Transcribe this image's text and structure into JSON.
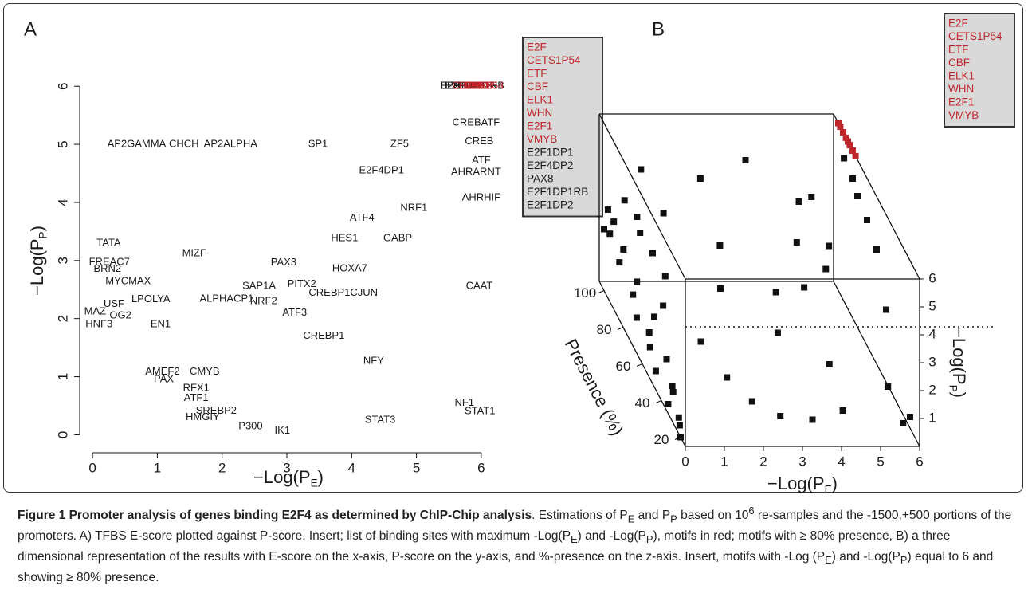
{
  "chart_data": [
    {
      "type": "text-scatter",
      "panel_label": "A",
      "xlabel": [
        "−Log(P",
        "E",
        ")"
      ],
      "ylabel": [
        "−Log(P",
        "P",
        ")"
      ],
      "xlim": [
        -0.1,
        6.1
      ],
      "ylim": [
        -0.2,
        6.25
      ],
      "xticks": [
        0,
        1,
        2,
        3,
        4,
        5,
        6
      ],
      "yticks": [
        0,
        1,
        2,
        3,
        4,
        5,
        6
      ],
      "series": [
        {
          "color": "#1a1a1a",
          "labels": [
            "AP2GAMMA",
            "CHCH",
            "AP2ALPHA",
            "SP1",
            "ZF5",
            "E2F4DP1",
            "CREBATF",
            "CREB",
            "ATF",
            "AHRARNT",
            "AHRHIF",
            "NRF1",
            "ATF4",
            "HES1",
            "GABP",
            "TATA",
            "MIZF",
            "FREAC7",
            "BRN2",
            "PAX3",
            "HOXA7",
            "MYCMAX",
            "SAP1A",
            "PITX2",
            "CREBP1CJUN",
            "CAAT",
            "LPOLYA",
            "USF",
            "ALPHACP1",
            "NRF2",
            "ATF3",
            "MAZ",
            "OG2",
            "EN1",
            "CREBP1",
            "NFY",
            "CMYB",
            "AMEF2",
            "PAX",
            "HNF3",
            "RFX1",
            "ATF1",
            "SREBP2",
            "HMGIY",
            "P300",
            "IK1",
            "STAT3",
            "NF1",
            "STAT1",
            "E2F1DP1",
            "E2F4DP2",
            "PAX8",
            "E2F1DP1RB",
            "E2F1DP2"
          ],
          "x": [
            0.68,
            1.41,
            2.13,
            3.48,
            4.74,
            4.46,
            5.92,
            5.97,
            6.0,
            5.92,
            6.0,
            4.96,
            4.16,
            3.89,
            4.71,
            0.25,
            1.57,
            0.26,
            0.23,
            2.95,
            3.97,
            0.55,
            2.57,
            3.23,
            3.87,
            5.97,
            0.9,
            0.33,
            2.07,
            2.64,
            3.12,
            0.04,
            0.43,
            1.05,
            3.57,
            4.34,
            1.73,
            1.08,
            1.1,
            0.1,
            1.6,
            1.6,
            1.91,
            1.7,
            2.44,
            2.93,
            4.44,
            5.74,
            5.98,
            5.72,
            5.78,
            5.85,
            5.9,
            5.82
          ],
          "y": [
            5.0,
            5.0,
            5.0,
            5.0,
            5.0,
            4.55,
            5.37,
            5.05,
            4.72,
            4.52,
            4.08,
            3.9,
            3.73,
            3.38,
            3.38,
            3.3,
            3.12,
            2.97,
            2.85,
            2.96,
            2.86,
            2.64,
            2.56,
            2.59,
            2.44,
            2.56,
            2.33,
            2.25,
            2.34,
            2.3,
            2.1,
            2.12,
            2.05,
            1.9,
            1.7,
            1.27,
            1.08,
            1.08,
            0.95,
            1.9,
            0.8,
            0.63,
            0.41,
            0.3,
            0.14,
            0.07,
            0.25,
            0.55,
            0.4,
            6.0,
            6.0,
            6.0,
            6.0,
            6.0
          ]
        },
        {
          "color": "#c0272d",
          "labels": [
            "E2F",
            "CETS1P54",
            "ETF",
            "CBF",
            "ELK1",
            "WHN",
            "E2F1",
            "VMYB"
          ],
          "x": [
            5.8,
            5.95,
            5.9,
            5.88,
            5.93,
            6.0,
            5.85,
            5.97
          ],
          "y": [
            6.0,
            6.0,
            6.0,
            6.0,
            6.0,
            6.0,
            6.0,
            6.0
          ]
        }
      ],
      "insert": {
        "items": [
          "E2F",
          "CETS1P54",
          "ETF",
          "CBF",
          "ELK1",
          "WHN",
          "E2F1",
          "VMYB",
          "E2F1DP1",
          "E2F4DP2",
          "PAX8",
          "E2F1DP1RB",
          "E2F1DP2"
        ],
        "colors": [
          "#c0272d",
          "#c0272d",
          "#c0272d",
          "#c0272d",
          "#c0272d",
          "#c0272d",
          "#c0272d",
          "#c0272d",
          "#1a1a1a",
          "#1a1a1a",
          "#1a1a1a",
          "#1a1a1a",
          "#1a1a1a"
        ]
      }
    },
    {
      "type": "scatter3d",
      "panel_label": "B",
      "xlabel": [
        "−Log(P",
        "E",
        ")"
      ],
      "ylabel": [
        "−Log(P",
        "P",
        ")"
      ],
      "zlabel": "Presence (%)",
      "xlim": [
        0,
        6
      ],
      "ylim": [
        0,
        6
      ],
      "zlim": [
        15,
        105
      ],
      "xticks": [
        0,
        1,
        2,
        3,
        4,
        5,
        6
      ],
      "yticks": [
        1,
        2,
        3,
        4,
        5,
        6
      ],
      "zticks": [
        20,
        40,
        60,
        80,
        100
      ],
      "series": [
        {
          "color": "#111111",
          "x": [
            0,
            0.1,
            0.2,
            0.05,
            0.3,
            0.4,
            0.1,
            0.5,
            0.2,
            0.3,
            0.1,
            0.6,
            0.2,
            0.4,
            0.1,
            0.3,
            0.05,
            0.2,
            0,
            0.1,
            0.5,
            0.8,
            1.0,
            1.2,
            0.9,
            1.5,
            1.8,
            2.2,
            2.8,
            3.5,
            4.4,
            5.8,
            2,
            3.3,
            4.2,
            4.9,
            3.9,
            4.7,
            2.6,
            3.1,
            4.3,
            1.4,
            0.6,
            4.5,
            3.5,
            0.7,
            2.1,
            4.7,
            5.9,
            6,
            6,
            6,
            6,
            6,
            5.7,
            6
          ],
          "y": [
            0,
            0.1,
            0.05,
            0.2,
            0.3,
            0.2,
            0.4,
            0.5,
            0.6,
            0.8,
            1.0,
            0.9,
            1.3,
            1.5,
            1.8,
            2.0,
            2.3,
            2.6,
            2.2,
            2.9,
            3.3,
            2.4,
            2.0,
            1.5,
            1.1,
            0.8,
            0.5,
            0.3,
            0.1,
            0.3,
            0.3,
            0.5,
            2.7,
            2.9,
            3.7,
            3.9,
            3.4,
            3.4,
            2.6,
            2.1,
            1.3,
            3.1,
            3.3,
            4.5,
            5,
            5,
            5,
            5,
            5.4,
            5,
            4.7,
            4.5,
            4.1,
            2.6,
            0.5,
            0.4
          ],
          "z": [
            20,
            25,
            30,
            35,
            40,
            45,
            50,
            55,
            60,
            65,
            70,
            72,
            78,
            82,
            88,
            92,
            96,
            98,
            100,
            100,
            99,
            95,
            90,
            85,
            75,
            60,
            45,
            35,
            30,
            25,
            30,
            40,
            60,
            55,
            70,
            65,
            50,
            60,
            85,
            45,
            40,
            95,
            90,
            80,
            95,
            90,
            85,
            75,
            90,
            85,
            80,
            70,
            60,
            50,
            20,
            25
          ]
        },
        {
          "color": "#c0272d",
          "x": [
            6,
            6,
            6,
            6,
            6,
            6,
            6,
            6
          ],
          "y": [
            6,
            6,
            6,
            6,
            6,
            6,
            6,
            6
          ],
          "z": [
            82,
            85,
            88,
            90,
            92,
            95,
            98,
            100
          ]
        }
      ],
      "insert": {
        "items": [
          "E2F",
          "CETS1P54",
          "ETF",
          "CBF",
          "ELK1",
          "WHN",
          "E2F1",
          "VMYB"
        ],
        "colors": [
          "#c0272d",
          "#c0272d",
          "#c0272d",
          "#c0272d",
          "#c0272d",
          "#c0272d",
          "#c0272d",
          "#c0272d"
        ]
      }
    }
  ],
  "caption": {
    "runs": [
      {
        "text": "Figure 1 Promoter analysis of genes binding E2F4 as determined by ChIP-Chip analysis",
        "style": "bold"
      },
      {
        "text": ". Estimations of P",
        "style": "normal"
      },
      {
        "text": "E",
        "style": "sub"
      },
      {
        "text": " and P",
        "style": "normal"
      },
      {
        "text": "P",
        "style": "sub"
      },
      {
        "text": " based on 10",
        "style": "normal"
      },
      {
        "text": "6",
        "style": "sup"
      },
      {
        "text": " re-samples and the -1500,+500 portions of the promoters. A) TFBS E-score plotted against P-score. Insert; list of binding sites with maximum -Log(P",
        "style": "normal"
      },
      {
        "text": "E",
        "style": "sub"
      },
      {
        "text": ") and -Log(P",
        "style": "normal"
      },
      {
        "text": "P",
        "style": "sub"
      },
      {
        "text": "), motifs in red; motifs with ≥ 80% presence, B) a three dimensional representation of the results with E-score on the x-axis, P-score on the y-axis, and %-presence on the z-axis. Insert, motifs with -Log (P",
        "style": "normal"
      },
      {
        "text": "E",
        "style": "sub"
      },
      {
        "text": ") and -Log(P",
        "style": "normal"
      },
      {
        "text": "P",
        "style": "sub"
      },
      {
        "text": ") equal to 6 and showing ≥ 80% presence.",
        "style": "normal"
      }
    ]
  }
}
